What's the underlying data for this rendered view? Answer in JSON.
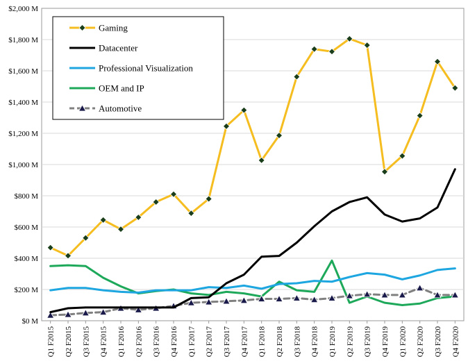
{
  "chart_data": {
    "type": "line",
    "categories": [
      "Q1 F2015",
      "Q2 F2015",
      "Q3 F2015",
      "Q4 F2015",
      "Q1 F2016",
      "Q2 F2016",
      "Q3 F2016",
      "Q4 F2016",
      "Q1 F2017",
      "Q2 F2017",
      "Q3 F2017",
      "Q4 F2017",
      "Q1 F2018",
      "Q2 F2018",
      "Q3 F2018",
      "Q4 F2018",
      "Q1 F2019",
      "Q2 F2019",
      "Q3 F2019",
      "Q4 F2019",
      "Q1 F2020",
      "Q2 F2020",
      "Q3 F2020",
      "Q4 F2020"
    ],
    "ytick_labels": [
      "$0 M",
      "$200 M",
      "$400 M",
      "$600 M",
      "$800 M",
      "$1,000 M",
      "$1,200 M",
      "$1,400 M",
      "$1,600 M",
      "$1,800 M",
      "$2,000 M"
    ],
    "ylim": [
      0,
      2000
    ],
    "ystep": 200,
    "grid": "horizontal",
    "legend_position": "top-left",
    "series": [
      {
        "name": "Gaming",
        "color": "#F5BD1F",
        "marker": "diamond",
        "marker_color": "#1a3d1a",
        "dashed": false,
        "values": [
          468,
          416,
          530,
          645,
          586,
          662,
          760,
          810,
          688,
          780,
          1245,
          1348,
          1027,
          1186,
          1562,
          1739,
          1723,
          1805,
          1764,
          954,
          1055,
          1313,
          1659,
          1490
        ]
      },
      {
        "name": "Datacenter",
        "color": "#000000",
        "marker": "none",
        "dashed": false,
        "values": [
          55,
          80,
          85,
          85,
          85,
          85,
          85,
          85,
          145,
          150,
          240,
          295,
          410,
          415,
          500,
          605,
          700,
          760,
          790,
          680,
          635,
          655,
          725,
          970
        ]
      },
      {
        "name": "Professional Visualization",
        "color": "#1DA6E0",
        "marker": "none",
        "dashed": false,
        "values": [
          195,
          210,
          210,
          195,
          185,
          180,
          195,
          195,
          195,
          215,
          210,
          225,
          205,
          235,
          240,
          255,
          250,
          280,
          305,
          295,
          265,
          290,
          325,
          335
        ]
      },
      {
        "name": "OEM and IP",
        "color": "#1DA85A",
        "marker": "none",
        "dashed": false,
        "values": [
          350,
          355,
          350,
          275,
          220,
          175,
          190,
          200,
          175,
          165,
          185,
          175,
          155,
          250,
          195,
          185,
          385,
          115,
          155,
          115,
          100,
          110,
          145,
          155
        ]
      },
      {
        "name": "Automotive",
        "color": "#808080",
        "marker": "triangle",
        "marker_color": "#1a1a4a",
        "dashed": true,
        "values": [
          35,
          40,
          50,
          55,
          80,
          70,
          80,
          95,
          115,
          120,
          125,
          130,
          140,
          140,
          145,
          135,
          145,
          160,
          170,
          165,
          165,
          210,
          165,
          165
        ]
      }
    ]
  }
}
